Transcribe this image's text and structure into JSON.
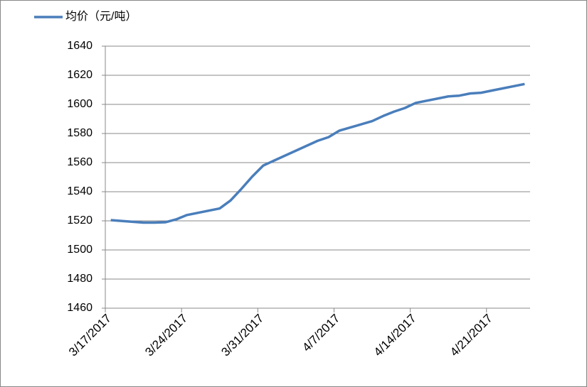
{
  "chart_data": {
    "type": "line",
    "x": [
      "3/17/2017",
      "3/20/2017",
      "3/21/2017",
      "3/22/2017",
      "3/23/2017",
      "3/24/2017",
      "3/27/2017",
      "3/28/2017",
      "3/29/2017",
      "3/30/2017",
      "3/31/2017",
      "4/5/2017",
      "4/6/2017",
      "4/7/2017",
      "4/10/2017",
      "4/11/2017",
      "4/12/2017",
      "4/13/2017",
      "4/14/2017",
      "4/17/2017",
      "4/18/2017",
      "4/19/2017",
      "4/20/2017",
      "4/21/2017",
      "4/24/2017"
    ],
    "series": [
      {
        "name": "均价（元/吨）",
        "color": "#4a7ebb",
        "values": [
          1520.5,
          1518.8,
          1518.8,
          1519,
          1521,
          1524,
          1528.5,
          1534,
          1542,
          1550.5,
          1558,
          1575,
          1577.5,
          1582,
          1588.5,
          1592,
          1595,
          1597.5,
          1601,
          1605.5,
          1606,
          1607.5,
          1608,
          1609.5,
          1614
        ]
      }
    ],
    "xlim": [
      "3/17/2017",
      "4/25/2017"
    ],
    "xticks": [
      "3/17/2017",
      "3/24/2017",
      "3/31/2017",
      "4/7/2017",
      "4/14/2017",
      "4/21/2017"
    ],
    "ylim": [
      1460,
      1640
    ],
    "yticks": [
      1460,
      1480,
      1500,
      1520,
      1540,
      1560,
      1580,
      1600,
      1620,
      1640
    ],
    "grid": true,
    "legend": "top-left"
  }
}
